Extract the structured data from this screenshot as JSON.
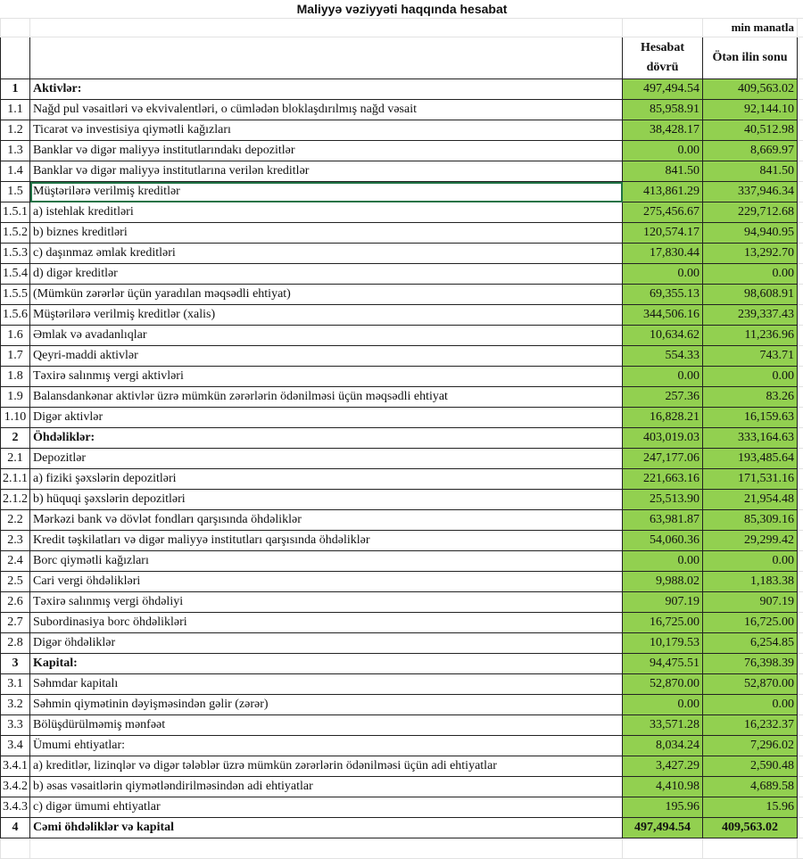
{
  "title": "Maliyyə vəziyyəti haqqında hesabat",
  "unit": "min manatla",
  "headers": {
    "current": "Hesabat dövrü",
    "previous": "Ötən ilin sonu"
  },
  "colors": {
    "value_fill": "#92d050",
    "selection": "#217346"
  },
  "selected_row": "1.5",
  "rows": [
    {
      "num": "1",
      "label": "Aktivlər:",
      "current": "497,494.54",
      "previous": "409,563.02",
      "bold": true
    },
    {
      "num": "1.1",
      "label": "Nağd pul vəsaitləri və  ekvivalentləri, o cümlədən bloklaşdırılmış nağd vəsait",
      "current": "85,958.91",
      "previous": "92,144.10"
    },
    {
      "num": "1.2",
      "label": "Ticarət və investisiya qiymətli kağızları",
      "current": "38,428.17",
      "previous": "40,512.98"
    },
    {
      "num": "1.3",
      "label": "Banklar və digər maliyyə institutlarındakı depozitlər",
      "current": "0.00",
      "previous": "8,669.97"
    },
    {
      "num": "1.4",
      "label": "Banklar və digər maliyyə institutlarına verilən kreditlər",
      "current": "841.50",
      "previous": "841.50"
    },
    {
      "num": "1.5",
      "label": "Müştərilərə verilmiş kreditlər",
      "current": "413,861.29",
      "previous": "337,946.34"
    },
    {
      "num": "1.5.1",
      "label": "a) istehlak kreditləri",
      "current": "275,456.67",
      "previous": "229,712.68"
    },
    {
      "num": "1.5.2",
      "label": "b) biznes kreditləri",
      "current": "120,574.17",
      "previous": "94,940.95"
    },
    {
      "num": "1.5.3",
      "label": "c) daşınmaz əmlak kreditləri",
      "current": "17,830.44",
      "previous": "13,292.70"
    },
    {
      "num": "1.5.4",
      "label": "d) digər kreditlər",
      "current": "0.00",
      "previous": "0.00"
    },
    {
      "num": "1.5.5",
      "label": "(Mümkün zərərlər üçün yaradılan məqsədli ehtiyat)",
      "current": "69,355.13",
      "previous": "98,608.91"
    },
    {
      "num": "1.5.6",
      "label": "Müştərilərə verilmiş kreditlər (xalis)",
      "current": "344,506.16",
      "previous": "239,337.43"
    },
    {
      "num": "1.6",
      "label": "Əmlak və avadanlıqlar",
      "current": "10,634.62",
      "previous": "11,236.96"
    },
    {
      "num": "1.7",
      "label": "Qeyri-maddi aktivlər",
      "current": "554.33",
      "previous": "743.71"
    },
    {
      "num": "1.8",
      "label": "Təxirə salınmış vergi aktivləri",
      "current": "0.00",
      "previous": "0.00"
    },
    {
      "num": "1.9",
      "label": "Balansdankənar aktivlər üzrə mümkün zərərlərin ödənilməsi üçün məqsədli ehtiyat",
      "current": "257.36",
      "previous": "83.26"
    },
    {
      "num": "1.10",
      "label": "Digər aktivlər",
      "current": "16,828.21",
      "previous": "16,159.63"
    },
    {
      "num": "2",
      "label": "Öhdəliklər:",
      "current": "403,019.03",
      "previous": "333,164.63",
      "bold": true
    },
    {
      "num": "2.1",
      "label": "Depozitlər",
      "current": "247,177.06",
      "previous": "193,485.64"
    },
    {
      "num": "2.1.1",
      "label": "a) fiziki şəxslərin depozitləri",
      "current": "221,663.16",
      "previous": "171,531.16"
    },
    {
      "num": "2.1.2",
      "label": "b) hüquqi şəxslərin depozitləri",
      "current": "25,513.90",
      "previous": "21,954.48"
    },
    {
      "num": "2.2",
      "label": "Mərkəzi bank və dövlət fondları qarşısında öhdəliklər",
      "current": "63,981.87",
      "previous": "85,309.16"
    },
    {
      "num": "2.3",
      "label": "Kredit təşkilatları və digər maliyyə institutları qarşısında öhdəliklər",
      "current": "54,060.36",
      "previous": "29,299.42"
    },
    {
      "num": "2.4",
      "label": "Borc qiymətli kağızları",
      "current": "0.00",
      "previous": "0.00"
    },
    {
      "num": "2.5",
      "label": "Cari vergi öhdəlikləri",
      "current": "9,988.02",
      "previous": "1,183.38"
    },
    {
      "num": "2.6",
      "label": "Təxirə salınmış vergi öhdəliyi",
      "current": "907.19",
      "previous": "907.19"
    },
    {
      "num": "2.7",
      "label": "Subordinasiya borc öhdəlikləri",
      "current": "16,725.00",
      "previous": "16,725.00"
    },
    {
      "num": "2.8",
      "label": "Digər öhdəliklər",
      "current": "10,179.53",
      "previous": "6,254.85"
    },
    {
      "num": "3",
      "label": "Kapital:",
      "current": "94,475.51",
      "previous": "76,398.39",
      "bold": true
    },
    {
      "num": "3.1",
      "label": "Səhmdar kapitalı",
      "current": "52,870.00",
      "previous": "52,870.00"
    },
    {
      "num": "3.2",
      "label": "Səhmin qiymətinin dəyişməsindən gəlir (zərər)",
      "current": "0.00",
      "previous": "0.00"
    },
    {
      "num": "3.3",
      "label": "Bölüşdürülməmiş mənfəət",
      "current": "33,571.28",
      "previous": "16,232.37"
    },
    {
      "num": "3.4",
      "label": "Ümumi ehtiyatlar:",
      "current": "8,034.24",
      "previous": "7,296.02"
    },
    {
      "num": "3.4.1",
      "label": "a) kreditlər, lizinqlər və digər tələblər üzrə mümkün zərərlərin ödənilməsi üçün adi ehtiyatlar",
      "current": "3,427.29",
      "previous": "2,590.48"
    },
    {
      "num": "3.4.2",
      "label": "b) əsas vəsaitlərin qiymətləndirilməsindən adi ehtiyatlar",
      "current": "4,410.98",
      "previous": "4,689.58"
    },
    {
      "num": "3.4.3",
      "label": "c) digər ümumi ehtiyatlar",
      "current": "195.96",
      "previous": "15.96"
    },
    {
      "num": "4",
      "label": "Cəmi öhdəliklər və kapital",
      "current": "497,494.54",
      "previous": "409,563.02",
      "bold": true,
      "total": true
    }
  ]
}
